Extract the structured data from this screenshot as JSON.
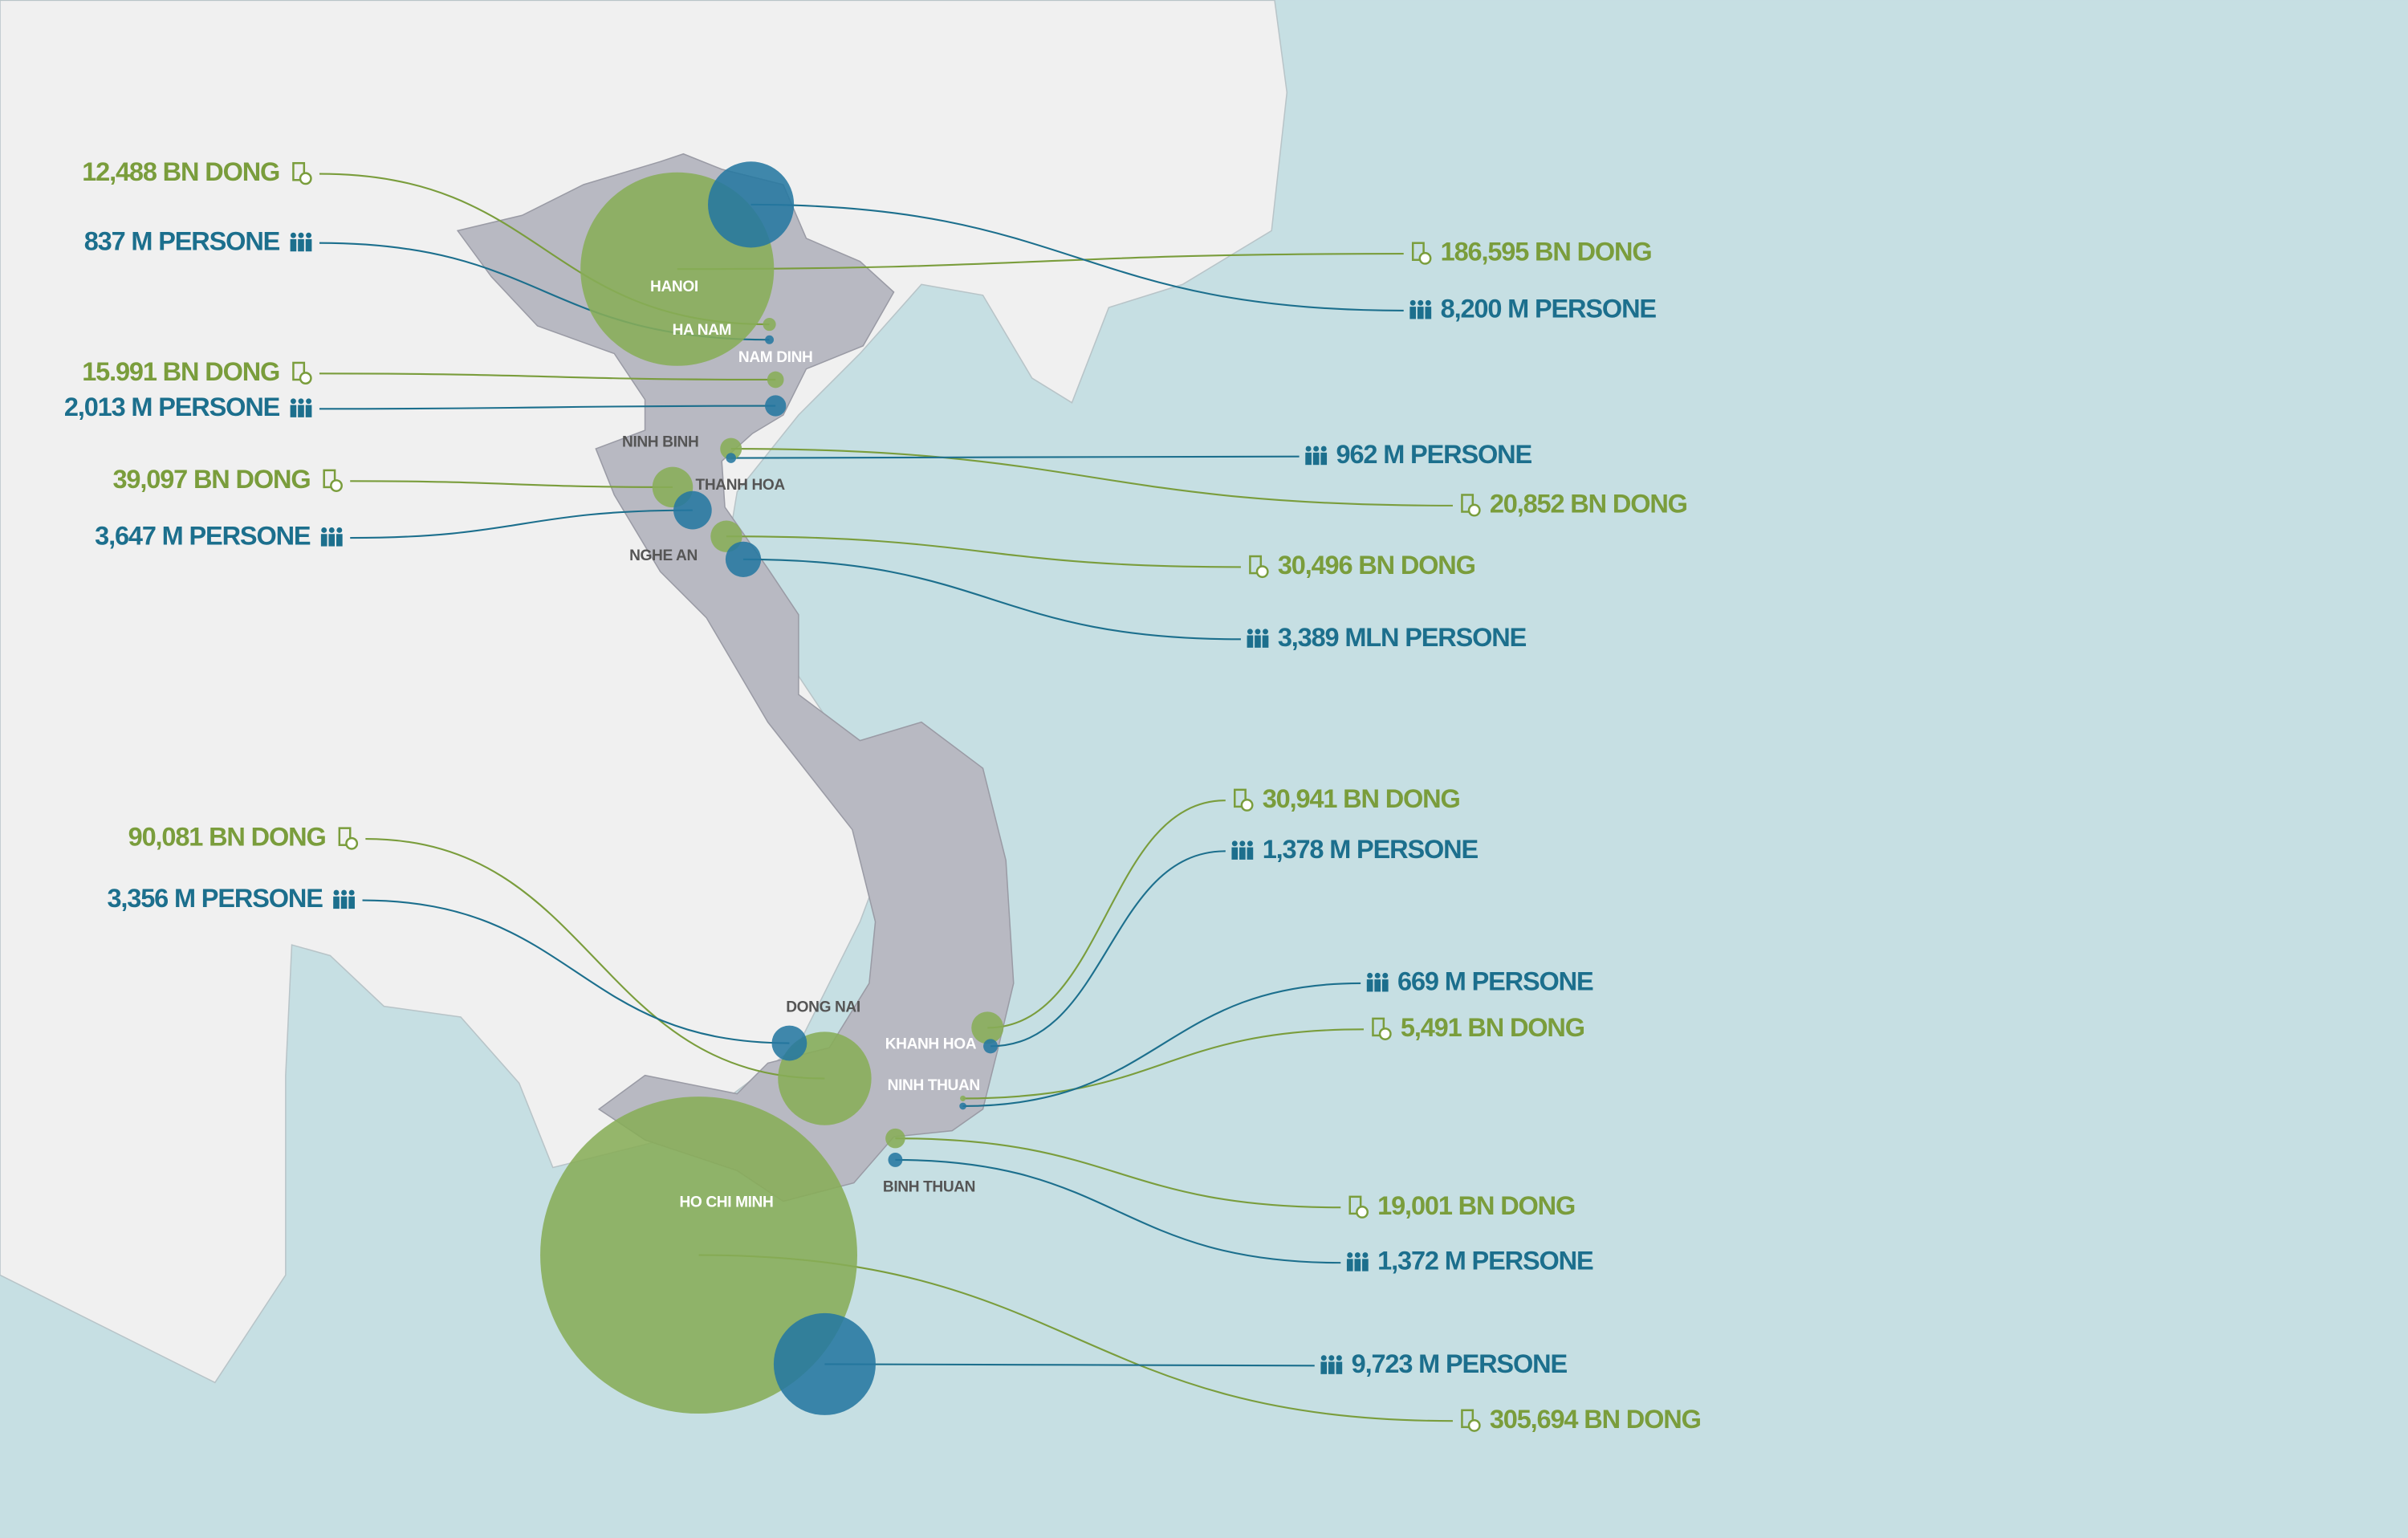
{
  "places": [
    "HANOI",
    "HA NAM",
    "NAM DINH",
    "NINH BINH",
    "THANH HOA",
    "NGHE AN",
    "DONG NAI",
    "KHANH HOA",
    "NINH THUAN",
    "BINH THUAN",
    "HO CHI MINH"
  ],
  "markers": [
    {
      "gdp": {
        "value": 186595,
        "label": "186,595 BN DONG"
      },
      "population": {
        "value": 8200,
        "label": "8,200 M PERSONE"
      }
    },
    {
      "gdp": {
        "value": 12488,
        "label": "12,488 BN DONG"
      },
      "population": {
        "value": 837,
        "label": "837 M PERSONE"
      }
    },
    {
      "gdp": {
        "value": 15991,
        "label": "15.991 BN DONG"
      },
      "population": {
        "value": 2013,
        "label": "2,013 M PERSONE"
      }
    },
    {
      "gdp": {
        "value": 20852,
        "label": "20,852 BN DONG"
      },
      "population": {
        "value": 962,
        "label": "962 M PERSONE"
      }
    },
    {
      "gdp": {
        "value": 39097,
        "label": "39,097 BN DONG"
      },
      "population": {
        "value": 3647,
        "label": "3,647 M PERSONE"
      }
    },
    {
      "gdp": {
        "value": 30496,
        "label": "30,496 BN DONG"
      },
      "population": {
        "value": 3389,
        "label": "3,389 MLN PERSONE"
      }
    },
    {
      "gdp": {
        "value": 30941,
        "label": "30,941 BN DONG"
      },
      "population": {
        "value": 1378,
        "label": "1,378 M PERSONE"
      }
    },
    {
      "gdp": {
        "value": 5491,
        "label": "5,491 BN DONG"
      },
      "population": {
        "value": 669,
        "label": "669 M PERSONE"
      }
    },
    {
      "gdp": {
        "value": 19001,
        "label": "19,001 BN DONG"
      },
      "population": {
        "value": 1372,
        "label": "1,372 M PERSONE"
      }
    },
    {
      "gdp": {
        "value": 90081,
        "label": "90,081 BN DONG"
      },
      "population": {
        "value": 3356,
        "label": "3,356 M PERSONE"
      }
    },
    {
      "gdp": {
        "value": 305694,
        "label": "305,694 BN DONG"
      },
      "population": {
        "value": 9723,
        "label": "9,723 M PERSONE"
      }
    }
  ]
}
